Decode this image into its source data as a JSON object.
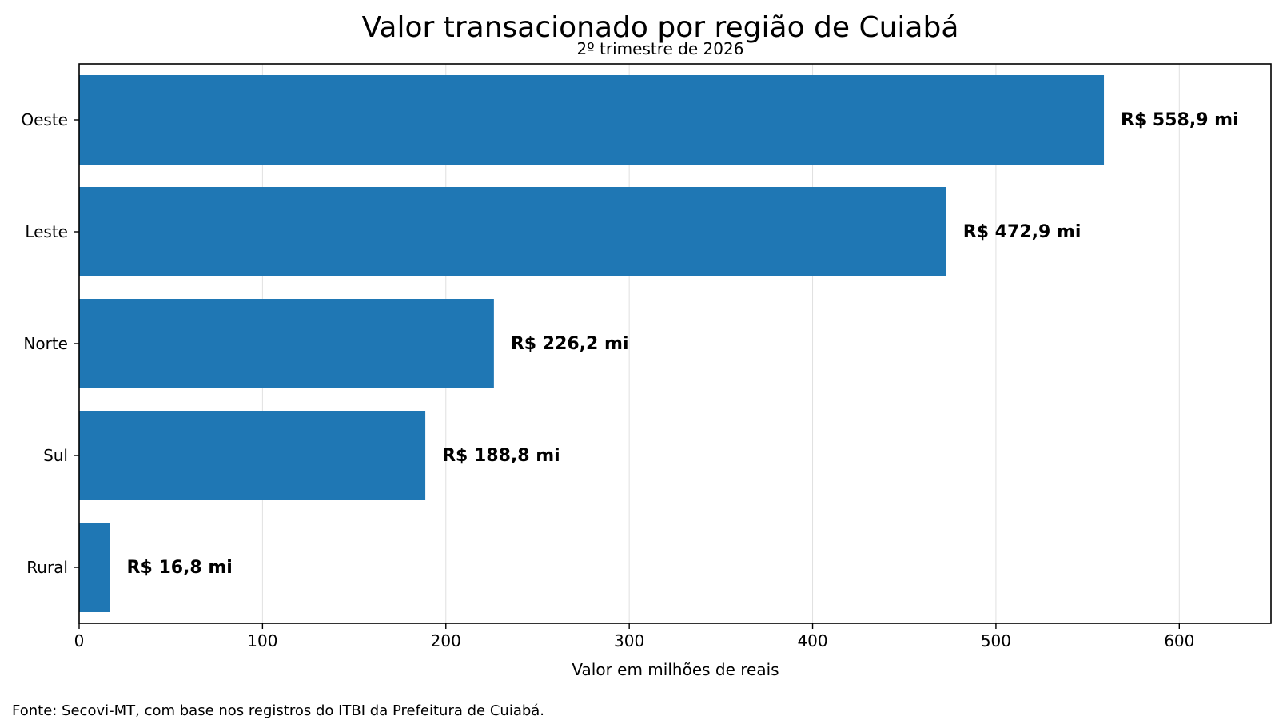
{
  "chart_data": {
    "type": "bar",
    "orientation": "horizontal",
    "title": "Valor transacionado por região de Cuiabá",
    "subtitle": "2º trimestre de 2026",
    "xlabel": "Valor em milhões de reais",
    "ylabel": "",
    "xlim": [
      0,
      650
    ],
    "xticks": [
      0,
      100,
      200,
      300,
      400,
      500,
      600
    ],
    "xtick_labels": [
      "0",
      "100",
      "200",
      "300",
      "400",
      "500",
      "600"
    ],
    "grid": "vertical",
    "categories": [
      "Oeste",
      "Leste",
      "Norte",
      "Sul",
      "Rural"
    ],
    "values": [
      558.9,
      472.9,
      226.2,
      188.8,
      16.8
    ],
    "data_labels": [
      "R$ 558,9 mi",
      "R$ 472,9 mi",
      "R$ 226,2 mi",
      "R$ 188,8 mi",
      "R$ 16,8 mi"
    ],
    "bar_color": "#1f77b4",
    "grid_color": "#e0e0e0",
    "source": "Fonte: Secovi-MT, com base nos registros do ITBI da Prefeitura de Cuiabá."
  }
}
